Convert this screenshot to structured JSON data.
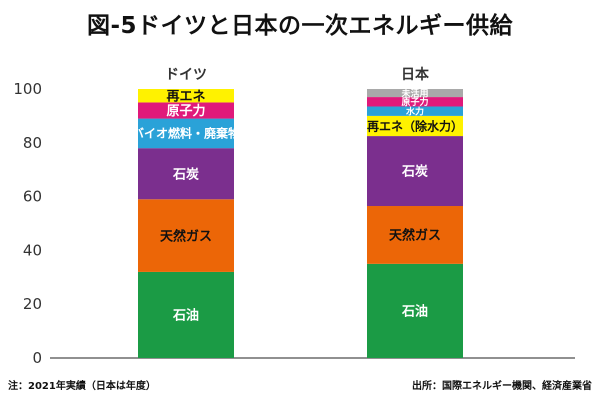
{
  "title": "図-5ドイツと日本の一次エネルギー供給",
  "note_left": "注：2021年実績（日本は年度）",
  "note_right": "出所：国際エネルギー機関、経済産業省",
  "chart_data": {
    "type": "bar",
    "stacked": true,
    "categories": [
      "ドイツ",
      "日本"
    ],
    "ylim": [
      0,
      100
    ],
    "yticks": [
      0,
      20,
      40,
      60,
      80,
      100
    ],
    "grid": false,
    "series": [
      {
        "name": "石油",
        "color": "#1b9b45",
        "label_color": "#ffffff",
        "values": [
          32,
          35
        ]
      },
      {
        "name": "天然ガス",
        "color": "#ec6607",
        "label_color": "#111111",
        "values": [
          27,
          21.5
        ]
      },
      {
        "name": "石炭",
        "color": "#7b2f8e",
        "label_color": "#ffffff",
        "values": [
          19,
          26
        ]
      },
      {
        "name": "バイオ燃料・廃棄物",
        "color": "#2aa2d8",
        "label_color": "#ffffff",
        "values": [
          11,
          0
        ]
      },
      {
        "name": "再エネ（除水力）",
        "color": "#fff200",
        "label_color": "#111111",
        "values": [
          0,
          7.5
        ]
      },
      {
        "name": "水力",
        "color": "#2aa2d8",
        "label_color": "#ffffff",
        "values": [
          0,
          3.5
        ]
      },
      {
        "name": "原子力",
        "color": "#e0197a",
        "label_color": "#ffffff",
        "values": [
          6,
          3.5
        ]
      },
      {
        "name": "未活用",
        "color": "#a9a9a9",
        "label_color": "#ffffff",
        "values": [
          0,
          3
        ]
      },
      {
        "name": "再エネ",
        "color": "#fff200",
        "label_color": "#111111",
        "values": [
          5,
          0
        ]
      }
    ],
    "segment_labels": [
      [
        "石油",
        "天然ガス",
        "石炭",
        "バイオ燃料・廃棄物",
        "",
        "",
        "原子力",
        "",
        "再エネ"
      ],
      [
        "石油",
        "天然ガス",
        "石炭",
        "",
        "再エネ（除水力）",
        "水力",
        "原子力",
        "未活用",
        ""
      ]
    ]
  }
}
